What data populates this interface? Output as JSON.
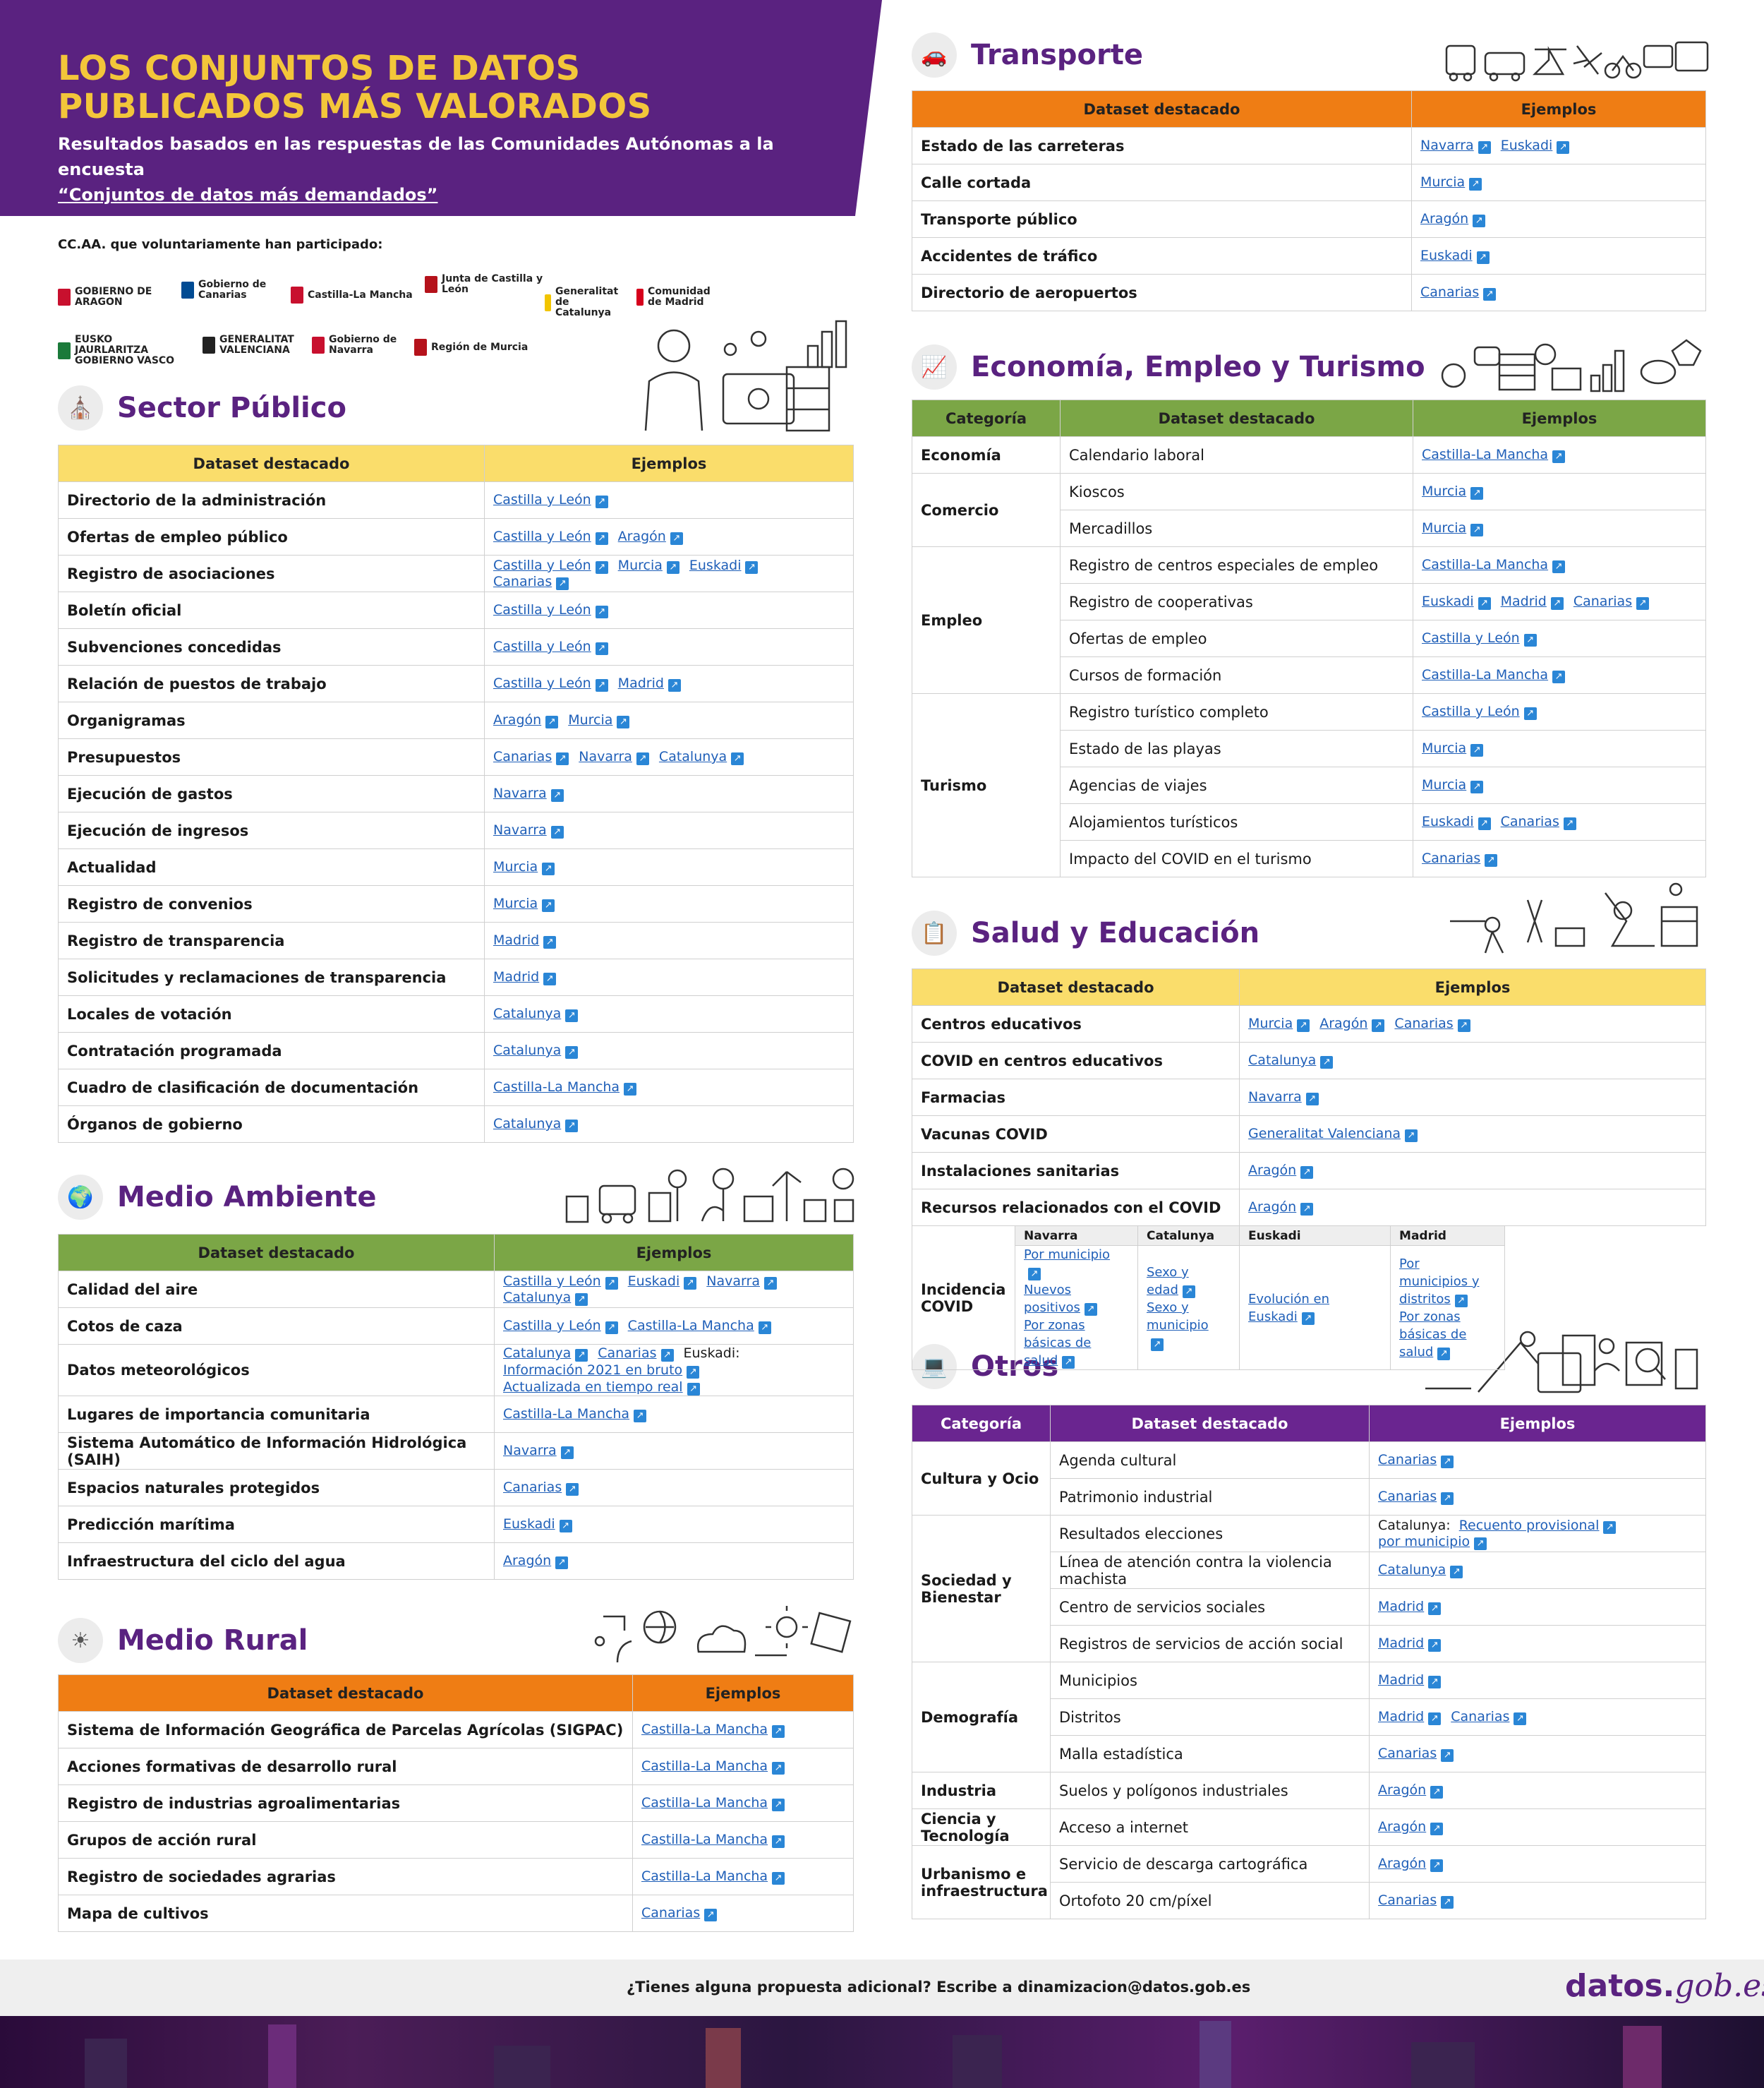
{
  "header": {
    "title": "LOS CONJUNTOS DE DATOS PUBLICADOS MÁS VALORADOS",
    "subtitle_line1": "Resultados basados en las respuestas de las Comunidades Autónomas a la encuesta",
    "subtitle_line2": "“Conjuntos de datos más demandados”"
  },
  "ccaa": {
    "label": "CC.AA. que voluntariamente han participado:",
    "logos": [
      "GOBIERNO DE ARAGON",
      "Gobierno de Canarias",
      "Castilla-La Mancha",
      "Junta de Castilla y León",
      "Generalitat de Catalunya",
      "Comunidad de Madrid",
      "EUSKO JAURLARITZA GOBIERNO VASCO",
      "GENERALITAT VALENCIANA",
      "Gobierno de Navarra",
      "Región de Murcia"
    ]
  },
  "sections": {
    "sector_publico": {
      "title": "Sector Público",
      "col1": "Dataset destacado",
      "col2": "Ejemplos",
      "rows": [
        {
          "d": "Directorio de la administración",
          "e": [
            "Castilla y León"
          ]
        },
        {
          "d": "Ofertas de empleo público",
          "e": [
            "Castilla y León",
            "Aragón"
          ]
        },
        {
          "d": "Registro de asociaciones",
          "e": [
            "Castilla y León",
            "Murcia",
            "Euskadi",
            "Canarias"
          ]
        },
        {
          "d": "Boletín oficial",
          "e": [
            "Castilla y León"
          ]
        },
        {
          "d": "Subvenciones concedidas",
          "e": [
            "Castilla y León"
          ]
        },
        {
          "d": "Relación de puestos de trabajo",
          "e": [
            "Castilla y León",
            "Madrid"
          ]
        },
        {
          "d": "Organigramas",
          "e": [
            "Aragón",
            "Murcia"
          ]
        },
        {
          "d": "Presupuestos",
          "e": [
            "Canarias",
            "Navarra",
            "Catalunya"
          ]
        },
        {
          "d": "Ejecución de gastos",
          "e": [
            "Navarra"
          ]
        },
        {
          "d": "Ejecución de ingresos",
          "e": [
            "Navarra"
          ]
        },
        {
          "d": "Actualidad",
          "e": [
            "Murcia"
          ]
        },
        {
          "d": "Registro de convenios",
          "e": [
            "Murcia"
          ]
        },
        {
          "d": "Registro de transparencia",
          "e": [
            "Madrid"
          ]
        },
        {
          "d": "Solicitudes y reclamaciones de transparencia",
          "e": [
            "Madrid"
          ]
        },
        {
          "d": "Locales de votación",
          "e": [
            "Catalunya"
          ]
        },
        {
          "d": "Contratación programada",
          "e": [
            "Catalunya"
          ]
        },
        {
          "d": "Cuadro de clasificación de documentación",
          "e": [
            "Castilla-La Mancha"
          ]
        },
        {
          "d": "Órganos de gobierno",
          "e": [
            "Catalunya"
          ]
        }
      ]
    },
    "medio_ambiente": {
      "title": "Medio Ambiente",
      "col1": "Dataset destacado",
      "col2": "Ejemplos",
      "rows": [
        {
          "d": "Calidad del aire",
          "e": [
            "Castilla y León",
            "Euskadi",
            "Navarra",
            "Catalunya"
          ]
        },
        {
          "d": "Cotos de caza",
          "e": [
            "Castilla y León",
            "Castilla-La Mancha"
          ]
        },
        {
          "d": "Datos meteorológicos",
          "e": [
            "Catalunya",
            "Canarias"
          ],
          "extra_label": "Euskadi:",
          "extra": [
            "Información 2021 en bruto",
            "Actualizada en tiempo real"
          ]
        },
        {
          "d": "Lugares de importancia comunitaria",
          "e": [
            "Castilla-La Mancha"
          ]
        },
        {
          "d": "Sistema Automático de Información Hidrológica (SAIH)",
          "e": [
            "Navarra"
          ]
        },
        {
          "d": "Espacios naturales protegidos",
          "e": [
            "Canarias"
          ]
        },
        {
          "d": "Predicción marítima",
          "e": [
            "Euskadi"
          ]
        },
        {
          "d": "Infraestructura del ciclo del agua",
          "e": [
            "Aragón"
          ]
        }
      ]
    },
    "medio_rural": {
      "title": "Medio Rural",
      "col1": "Dataset destacado",
      "col2": "Ejemplos",
      "rows": [
        {
          "d": "Sistema de Información Geográfica de Parcelas Agrícolas (SIGPAC)",
          "e": [
            "Castilla-La Mancha"
          ]
        },
        {
          "d": "Acciones formativas de desarrollo rural",
          "e": [
            "Castilla-La Mancha"
          ]
        },
        {
          "d": "Registro de industrias agroalimentarias",
          "e": [
            "Castilla-La Mancha"
          ]
        },
        {
          "d": "Grupos de acción rural",
          "e": [
            "Castilla-La Mancha"
          ]
        },
        {
          "d": "Registro de sociedades agrarias",
          "e": [
            "Castilla-La Mancha"
          ]
        },
        {
          "d": "Mapa de cultivos",
          "e": [
            "Canarias"
          ]
        }
      ]
    },
    "transporte": {
      "title": "Transporte",
      "col1": "Dataset destacado",
      "col2": "Ejemplos",
      "rows": [
        {
          "d": "Estado de las carreteras",
          "e": [
            "Navarra",
            "Euskadi"
          ]
        },
        {
          "d": "Calle cortada",
          "e": [
            "Murcia"
          ]
        },
        {
          "d": "Transporte público",
          "e": [
            "Aragón"
          ]
        },
        {
          "d": "Accidentes de tráfico",
          "e": [
            "Euskadi"
          ]
        },
        {
          "d": "Directorio de aeropuertos",
          "e": [
            "Canarias"
          ]
        }
      ]
    },
    "economia": {
      "title": "Economía, Empleo y Turismo",
      "col0": "Categoría",
      "col1": "Dataset destacado",
      "col2": "Ejemplos",
      "groups": [
        {
          "cat": "Economía",
          "rows": [
            {
              "d": "Calendario laboral",
              "e": [
                "Castilla-La Mancha"
              ]
            }
          ]
        },
        {
          "cat": "Comercio",
          "rows": [
            {
              "d": "Kioscos",
              "e": [
                "Murcia"
              ]
            },
            {
              "d": "Mercadillos",
              "e": [
                "Murcia"
              ]
            }
          ]
        },
        {
          "cat": "Empleo",
          "rows": [
            {
              "d": "Registro de centros especiales de empleo",
              "e": [
                "Castilla-La Mancha"
              ]
            },
            {
              "d": "Registro de cooperativas",
              "e": [
                "Euskadi",
                "Madrid",
                "Canarias"
              ]
            },
            {
              "d": "Ofertas de empleo",
              "e": [
                "Castilla y León"
              ]
            },
            {
              "d": "Cursos de formación",
              "e": [
                "Castilla-La Mancha"
              ]
            }
          ]
        },
        {
          "cat": "Turismo",
          "rows": [
            {
              "d": "Registro turístico completo",
              "e": [
                "Castilla y León"
              ]
            },
            {
              "d": "Estado de las playas",
              "e": [
                "Murcia"
              ]
            },
            {
              "d": "Agencias de viajes",
              "e": [
                "Murcia"
              ]
            },
            {
              "d": "Alojamientos turísticos",
              "e": [
                "Euskadi",
                "Canarias"
              ]
            },
            {
              "d": "Impacto del COVID en el turismo",
              "e": [
                "Canarias"
              ]
            }
          ]
        }
      ]
    },
    "salud": {
      "title": "Salud y Educación",
      "col1": "Dataset destacado",
      "col2": "Ejemplos",
      "rows": [
        {
          "d": "Centros educativos",
          "e": [
            "Murcia",
            "Aragón",
            "Canarias"
          ]
        },
        {
          "d": "COVID en centros educativos",
          "e": [
            "Catalunya"
          ]
        },
        {
          "d": "Farmacias",
          "e": [
            "Navarra"
          ]
        },
        {
          "d": "Vacunas COVID",
          "e": [
            "Generalitat Valenciana"
          ]
        },
        {
          "d": "Instalaciones sanitarias",
          "e": [
            "Aragón"
          ]
        },
        {
          "d": "Recursos relacionados con el COVID",
          "e": [
            "Aragón"
          ]
        }
      ],
      "incidencia": {
        "d": "Incidencia COVID",
        "cols": [
          {
            "h": "Navarra",
            "e": [
              "Por municipio",
              "Nuevos positivos",
              "Por zonas básicas de salud"
            ]
          },
          {
            "h": "Catalunya",
            "e": [
              "Sexo y edad",
              "Sexo y municipio"
            ]
          },
          {
            "h": "Euskadi",
            "e": [
              "Evolución en Euskadi"
            ]
          },
          {
            "h": "Madrid",
            "e": [
              "Por municipios y distritos",
              "Por zonas básicas de salud"
            ]
          }
        ]
      }
    },
    "otros": {
      "title": "Otros",
      "col0": "Categoría",
      "col1": "Dataset destacado",
      "col2": "Ejemplos",
      "groups": [
        {
          "cat": "Cultura y Ocio",
          "rows": [
            {
              "d": "Agenda cultural",
              "e": [
                "Canarias"
              ]
            },
            {
              "d": "Patrimonio industrial",
              "e": [
                "Canarias"
              ]
            }
          ]
        },
        {
          "cat": "Sociedad y Bienestar",
          "rows": [
            {
              "d": "Resultados elecciones",
              "pre": "Catalunya:",
              "e": [
                "Recuento provisional",
                "por municipio"
              ]
            },
            {
              "d": "Línea de atención contra la violencia machista",
              "e": [
                "Catalunya"
              ]
            },
            {
              "d": "Centro de servicios sociales",
              "e": [
                "Madrid"
              ]
            },
            {
              "d": "Registros de servicios de acción social",
              "e": [
                "Madrid"
              ]
            }
          ]
        },
        {
          "cat": "Demografía",
          "rows": [
            {
              "d": "Municipios",
              "e": [
                "Madrid"
              ]
            },
            {
              "d": "Distritos",
              "e": [
                "Madrid",
                "Canarias"
              ]
            },
            {
              "d": "Malla estadística",
              "e": [
                "Canarias"
              ]
            }
          ]
        },
        {
          "cat": "Industria",
          "rows": [
            {
              "d": "Suelos y polígonos industriales",
              "e": [
                "Aragón"
              ]
            }
          ]
        },
        {
          "cat": "Ciencia y Tecnología",
          "rows": [
            {
              "d": "Acceso a internet",
              "e": [
                "Aragón"
              ]
            }
          ]
        },
        {
          "cat": "Urbanismo e infraestructura",
          "rows": [
            {
              "d": "Servicio de descarga cartográfica",
              "e": [
                "Aragón"
              ]
            },
            {
              "d": "Ortofoto 20 cm/píxel",
              "e": [
                "Canarias"
              ]
            }
          ]
        }
      ]
    }
  },
  "footer": {
    "text": "¿Tienes alguna propuesta adicional? Escribe a dinamizacion@datos.gob.es",
    "brand_a": "datos.",
    "brand_b": "gob.es"
  },
  "colors": {
    "purple": "#5a2280",
    "yellow": "#fadd6b",
    "green": "#7ba646",
    "orange": "#ef7d14",
    "link": "#1f5fb8"
  }
}
